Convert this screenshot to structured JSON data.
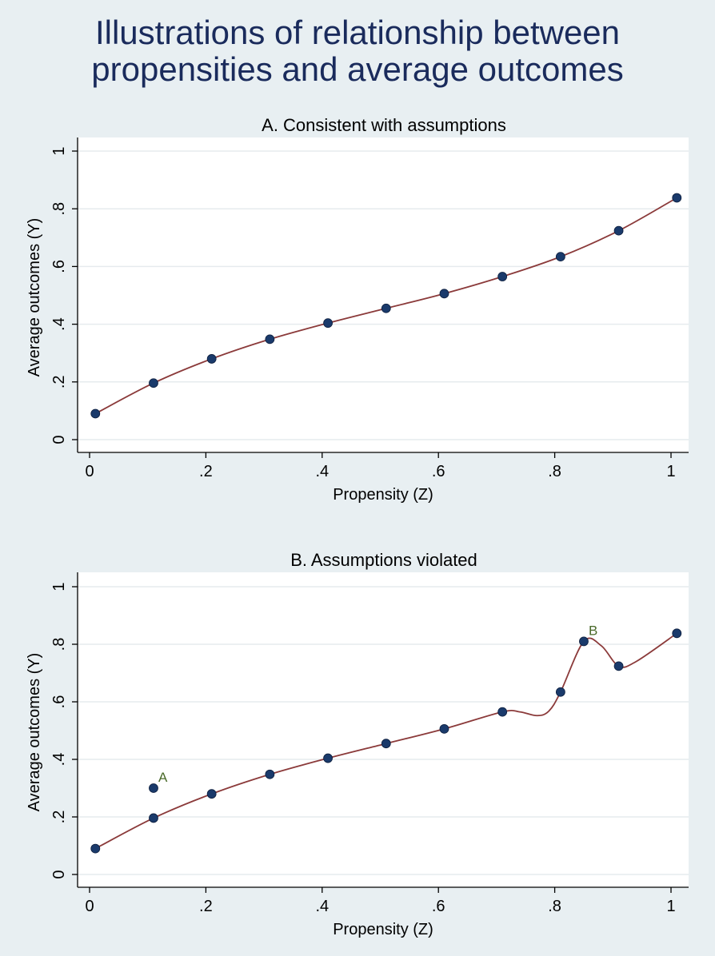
{
  "title": {
    "line1": "Illustrations of relationship between",
    "line2": "propensities and average outcomes"
  },
  "colors": {
    "background": "#e8eff2",
    "plot_area": "#ffffff",
    "title": "#1a2b5c",
    "marker": "#1a3a6b",
    "fit_line": "#8b3a3a",
    "annotation": "#4a6a2a",
    "grid": "#e6ebee"
  },
  "chart_data": [
    {
      "type": "scatter",
      "title": "A. Consistent with assumptions",
      "xlabel": "Propensity (Z)",
      "ylabel": "Average outcomes (Y)",
      "xlim": [
        0,
        1
      ],
      "ylim": [
        0,
        1
      ],
      "xticks": [
        0,
        0.2,
        0.4,
        0.6,
        0.8,
        1
      ],
      "xtick_labels": [
        "0",
        ".2",
        ".4",
        ".6",
        ".8",
        "1"
      ],
      "yticks": [
        0,
        0.2,
        0.4,
        0.6,
        0.8,
        1
      ],
      "ytick_labels": [
        "0",
        ".2",
        ".4",
        ".6",
        ".8",
        "1"
      ],
      "grid": true,
      "series": [
        {
          "kind": "points",
          "x": [
            0.01,
            0.11,
            0.21,
            0.31,
            0.41,
            0.51,
            0.61,
            0.71,
            0.81,
            0.91,
            1.01
          ],
          "y": [
            0.09,
            0.196,
            0.28,
            0.348,
            0.404,
            0.455,
            0.506,
            0.565,
            0.634,
            0.724,
            0.838
          ]
        },
        {
          "kind": "line",
          "x": [
            0.01,
            0.11,
            0.21,
            0.31,
            0.41,
            0.51,
            0.61,
            0.71,
            0.81,
            0.91,
            1.01
          ],
          "y": [
            0.09,
            0.196,
            0.28,
            0.348,
            0.404,
            0.455,
            0.506,
            0.565,
            0.634,
            0.724,
            0.838
          ]
        }
      ],
      "annotations": []
    },
    {
      "type": "scatter",
      "title": "B. Assumptions violated",
      "xlabel": "Propensity (Z)",
      "ylabel": "Average outcomes (Y)",
      "xlim": [
        0,
        1
      ],
      "ylim": [
        0,
        1
      ],
      "xticks": [
        0,
        0.2,
        0.4,
        0.6,
        0.8,
        1
      ],
      "xtick_labels": [
        "0",
        ".2",
        ".4",
        ".6",
        ".8",
        "1"
      ],
      "yticks": [
        0,
        0.2,
        0.4,
        0.6,
        0.8,
        1
      ],
      "ytick_labels": [
        "0",
        ".2",
        ".4",
        ".6",
        ".8",
        "1"
      ],
      "grid": true,
      "series": [
        {
          "kind": "points",
          "x": [
            0.01,
            0.11,
            0.11,
            0.21,
            0.31,
            0.41,
            0.51,
            0.61,
            0.71,
            0.81,
            0.85,
            0.91,
            1.01
          ],
          "y": [
            0.09,
            0.196,
            0.3,
            0.28,
            0.348,
            0.404,
            0.455,
            0.506,
            0.565,
            0.634,
            0.81,
            0.724,
            0.838
          ]
        },
        {
          "kind": "line",
          "x": [
            0.01,
            0.11,
            0.21,
            0.31,
            0.41,
            0.51,
            0.61,
            0.71,
            0.74,
            0.77,
            0.79,
            0.81,
            0.85,
            0.88,
            0.91,
            0.94,
            1.01
          ],
          "y": [
            0.09,
            0.196,
            0.28,
            0.348,
            0.404,
            0.455,
            0.506,
            0.565,
            0.565,
            0.552,
            0.568,
            0.634,
            0.81,
            0.795,
            0.724,
            0.74,
            0.838
          ]
        }
      ],
      "annotations": [
        {
          "text": "A",
          "x": 0.11,
          "y": 0.3
        },
        {
          "text": "B",
          "x": 0.85,
          "y": 0.81
        }
      ]
    }
  ]
}
